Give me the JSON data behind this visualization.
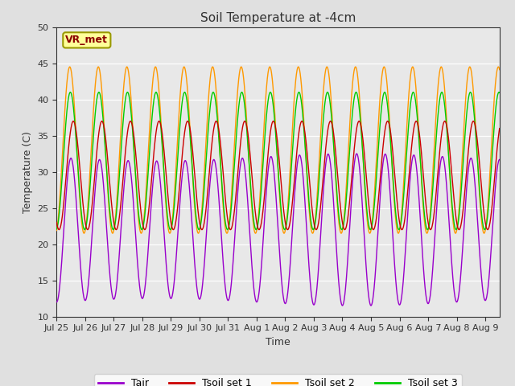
{
  "title": "Soil Temperature at -4cm",
  "xlabel": "Time",
  "ylabel": "Temperature (C)",
  "ylim": [
    10,
    50
  ],
  "yticks": [
    10,
    15,
    20,
    25,
    30,
    35,
    40,
    45,
    50
  ],
  "figure_bg": "#e0e0e0",
  "plot_bg": "#e8e8e8",
  "colors": {
    "Tair": "#9900cc",
    "Tsoil set 1": "#cc0000",
    "Tsoil set 2": "#ff9900",
    "Tsoil set 3": "#00cc00"
  },
  "annotation_text": "VR_met",
  "n_days": 15.5
}
